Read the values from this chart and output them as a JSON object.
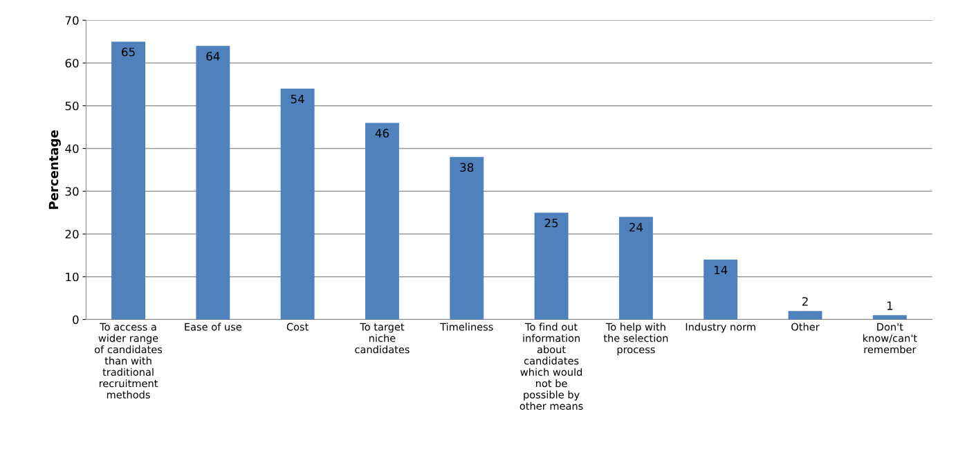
{
  "chart_data": {
    "type": "bar",
    "ylabel": "Percentage",
    "categories": [
      "To access a wider range of candidates than with traditional recruitment methods",
      "Ease of use",
      "Cost",
      "To target niche candidates",
      "Timeliness",
      "To find out information about candidates which would not be possible by other means",
      "To help with the selection process",
      "Industry norm",
      "Other",
      "Don't know/can't remember"
    ],
    "values": [
      65,
      64,
      54,
      46,
      38,
      25,
      24,
      14,
      2,
      1
    ],
    "color": "#4f81bd",
    "ylim": [
      0,
      70
    ],
    "yticks": [
      0,
      10,
      20,
      30,
      40,
      50,
      60,
      70
    ],
    "grid": "y",
    "data_labels": true
  }
}
